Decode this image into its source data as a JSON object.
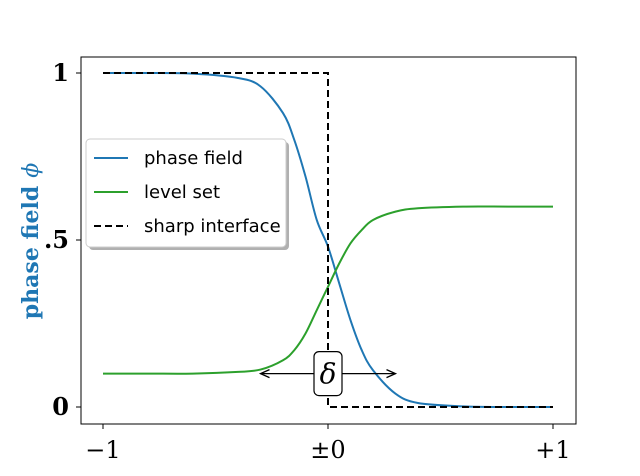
{
  "chart_data": {
    "type": "line",
    "ylabel": "phase field",
    "ylabel_symbol": "ϕ",
    "ylabel_color": "#1f77b4",
    "xlim": [
      -1.0,
      1.0
    ],
    "ylim": [
      0.0,
      1.0
    ],
    "xticks": [
      {
        "value": -1,
        "label": "−1"
      },
      {
        "value": 0,
        "label": "±0"
      },
      {
        "value": 1,
        "label": "+1"
      }
    ],
    "yticks": [
      {
        "value": 0,
        "label": "0"
      },
      {
        "value": 0.5,
        "label": ".5"
      },
      {
        "value": 1,
        "label": "1"
      }
    ],
    "legend_position": "center-left",
    "series": [
      {
        "name": "phase field",
        "color": "#1f77b4",
        "style": "solid",
        "x": [
          -1.0,
          -0.8,
          -0.6,
          -0.4,
          -0.3,
          -0.2,
          -0.15,
          -0.1,
          -0.05,
          0.0,
          0.05,
          0.1,
          0.15,
          0.2,
          0.3,
          0.4,
          0.6,
          0.8,
          1.0
        ],
        "y": [
          1.0,
          1.0,
          0.998,
          0.985,
          0.96,
          0.88,
          0.8,
          0.69,
          0.56,
          0.48,
          0.37,
          0.26,
          0.17,
          0.11,
          0.04,
          0.012,
          0.002,
          0.0,
          0.0
        ]
      },
      {
        "name": "level set",
        "color": "#2ca02c",
        "style": "solid",
        "x": [
          -1.0,
          -0.8,
          -0.6,
          -0.4,
          -0.3,
          -0.2,
          -0.15,
          -0.1,
          -0.05,
          0.0,
          0.05,
          0.1,
          0.15,
          0.2,
          0.3,
          0.4,
          0.6,
          0.8,
          1.0
        ],
        "y": [
          0.1,
          0.1,
          0.1,
          0.105,
          0.112,
          0.14,
          0.17,
          0.22,
          0.29,
          0.36,
          0.43,
          0.49,
          0.53,
          0.56,
          0.585,
          0.595,
          0.6,
          0.6,
          0.6
        ]
      },
      {
        "name": "sharp interface",
        "color": "#000000",
        "style": "dashed",
        "x": [
          -1.0,
          0.0,
          0.0,
          1.0
        ],
        "y": [
          1.0,
          1.0,
          0.0,
          0.0
        ]
      }
    ],
    "annotation": {
      "text": "δ",
      "x": 0.0,
      "y": 0.1,
      "arrow_from_x": -0.3,
      "arrow_to_x": 0.3
    }
  }
}
